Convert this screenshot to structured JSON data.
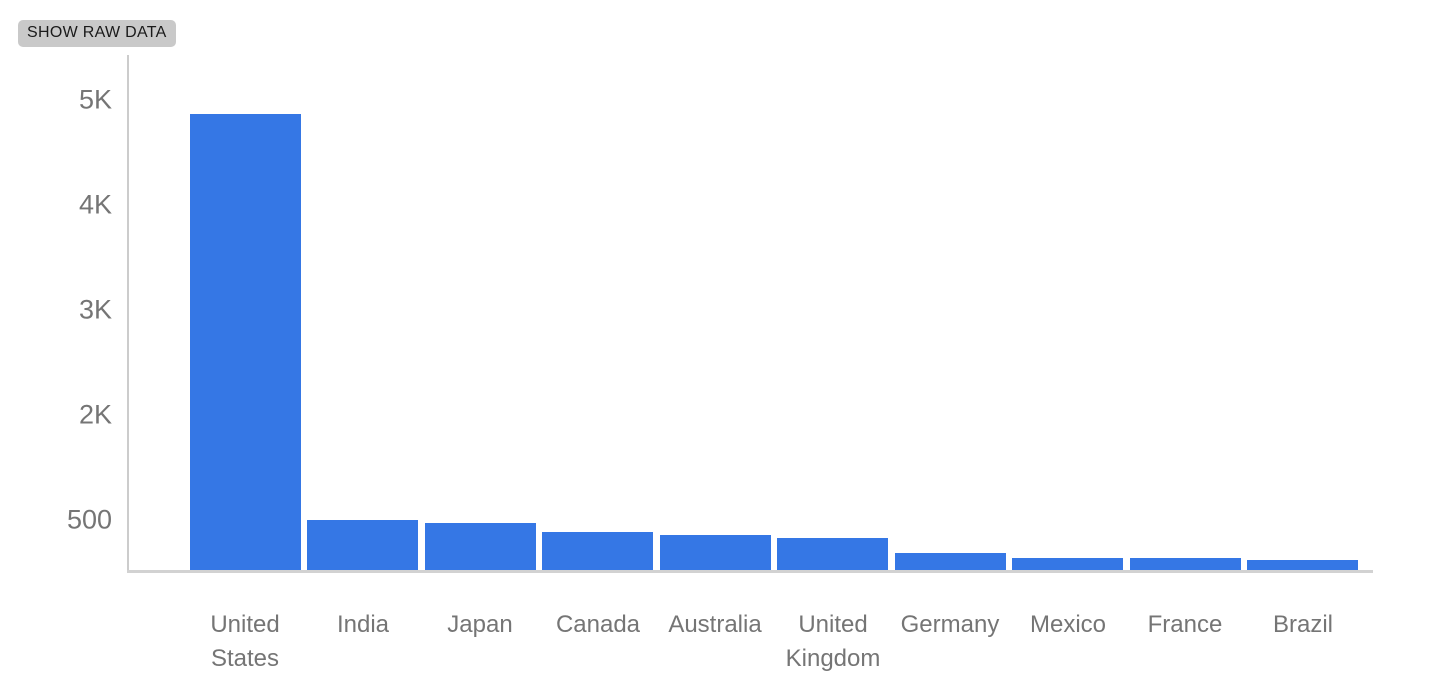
{
  "toolbar": {
    "show_raw_data_label": "SHOW RAW DATA"
  },
  "chart_data": {
    "type": "bar",
    "title": "",
    "xlabel": "",
    "ylabel": "",
    "categories": [
      "United States",
      "India",
      "Japan",
      "Canada",
      "Australia",
      "United Kingdom",
      "Germany",
      "Mexico",
      "France",
      "Brazil"
    ],
    "values": [
      4870,
      500,
      470,
      380,
      350,
      320,
      170,
      120,
      120,
      100
    ],
    "y_ticks": [
      {
        "label": "500",
        "value": 500
      },
      {
        "label": "2K",
        "value": 2000
      },
      {
        "label": "3K",
        "value": 3000
      },
      {
        "label": "4K",
        "value": 4000
      },
      {
        "label": "5K",
        "value": 5000
      }
    ],
    "ylim": [
      0,
      5200
    ],
    "grid": false,
    "legend": "none",
    "bar_color": "#3577e5",
    "axis_color": "#cccccc",
    "label_color": "#757575"
  }
}
